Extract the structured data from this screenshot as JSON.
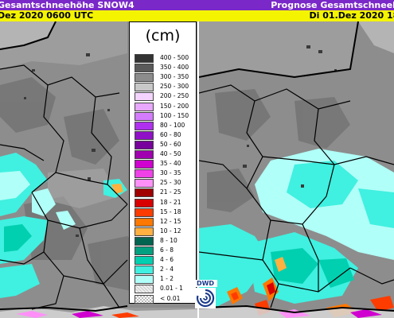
{
  "left_panel": {
    "title": "Gesamtschneehöhe SNOW4",
    "subtitle": "Dez 2020 0600 UTC"
  },
  "right_panel": {
    "title": "Prognose Gesamtschneeh",
    "subtitle": "Di 01.Dez 2020 180"
  },
  "legend": {
    "unit": "(cm)",
    "classes": [
      {
        "label": "400 - 500",
        "color": "#333333"
      },
      {
        "label": "350 - 400",
        "color": "#5a5a5a"
      },
      {
        "label": "300 - 350",
        "color": "#8c8c8c"
      },
      {
        "label": "250 - 300",
        "color": "#c8c8c8"
      },
      {
        "label": "200 - 250",
        "color": "#f4d4ff"
      },
      {
        "label": "150 - 200",
        "color": "#e8a8ff"
      },
      {
        "label": "100 - 150",
        "color": "#d47cff"
      },
      {
        "label": "80 - 100",
        "color": "#b030f0"
      },
      {
        "label": "60 - 80",
        "color": "#9010c8"
      },
      {
        "label": "50 - 60",
        "color": "#78009c"
      },
      {
        "label": "40 - 50",
        "color": "#a000b0"
      },
      {
        "label": "35 - 40",
        "color": "#d000d0"
      },
      {
        "label": "30 - 35",
        "color": "#f040e8"
      },
      {
        "label": "25 - 30",
        "color": "#ff90f8"
      },
      {
        "label": "21 - 25",
        "color": "#a00000"
      },
      {
        "label": "18 - 21",
        "color": "#d80000"
      },
      {
        "label": "15 - 18",
        "color": "#ff3c00"
      },
      {
        "label": "12 - 15",
        "color": "#ff7800"
      },
      {
        "label": "10 - 12",
        "color": "#ffb040"
      },
      {
        "label": "8 - 10",
        "color": "#006450"
      },
      {
        "label": "6 - 8",
        "color": "#00a080"
      },
      {
        "label": "4 - 6",
        "color": "#00d0b0"
      },
      {
        "label": "2 - 4",
        "color": "#40f0e0"
      },
      {
        "label": "1 - 2",
        "color": "#b0fff8"
      },
      {
        "label": "0.01 - 1",
        "color": "#e0e0e0"
      },
      {
        "label": "< 0.01",
        "color": "#ffffff"
      }
    ]
  },
  "logo": {
    "text": "DWD",
    "icon": "dwd-logo-icon"
  }
}
